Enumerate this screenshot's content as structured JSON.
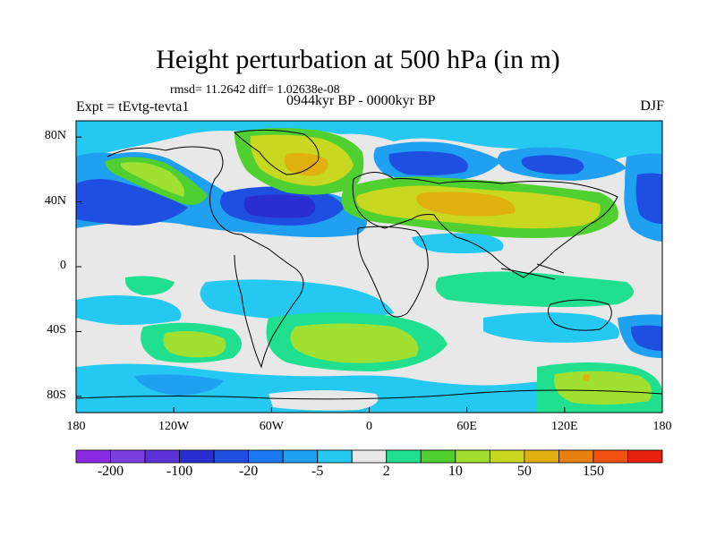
{
  "title": "Height perturbation at 500 hPa (in m)",
  "stats": "rmsd= 11.2642  diff= 1.02638e-08",
  "experiment": "Expt = tEvtg-tevta1",
  "period": "0944kyr BP - 0000kyr BP",
  "season": "DJF",
  "lat_labels": [
    {
      "value": 80,
      "label": "80N"
    },
    {
      "value": 40,
      "label": "40N"
    },
    {
      "value": 0,
      "label": "0"
    },
    {
      "value": -40,
      "label": "40S"
    },
    {
      "value": -80,
      "label": "80S"
    }
  ],
  "lon_labels": [
    {
      "value": -180,
      "label": "180"
    },
    {
      "value": -120,
      "label": "120W"
    },
    {
      "value": -60,
      "label": "60W"
    },
    {
      "value": 0,
      "label": "0"
    },
    {
      "value": 60,
      "label": "60E"
    },
    {
      "value": 120,
      "label": "120E"
    },
    {
      "value": 180,
      "label": "180"
    }
  ],
  "colorbar": {
    "colors": [
      "#8a2be2",
      "#7b3fe0",
      "#5a32d8",
      "#2a2ed0",
      "#1e4fe0",
      "#1a78f0",
      "#1fa0f0",
      "#25c8f0",
      "#e8e8e8",
      "#20e090",
      "#50d030",
      "#a0e030",
      "#c8d820",
      "#e0b010",
      "#e88010",
      "#f05010",
      "#e82010"
    ],
    "labels": [
      {
        "after_bin": 1,
        "text": "-200"
      },
      {
        "after_bin": 3,
        "text": "-100"
      },
      {
        "after_bin": 5,
        "text": "-20"
      },
      {
        "after_bin": 7,
        "text": "-5"
      },
      {
        "after_bin": 9,
        "text": "2"
      },
      {
        "after_bin": 11,
        "text": "10"
      },
      {
        "after_bin": 13,
        "text": "50"
      },
      {
        "after_bin": 15,
        "text": "150"
      }
    ]
  },
  "colors": {
    "background_field": "#e8e8e8",
    "coast": "#000000"
  }
}
